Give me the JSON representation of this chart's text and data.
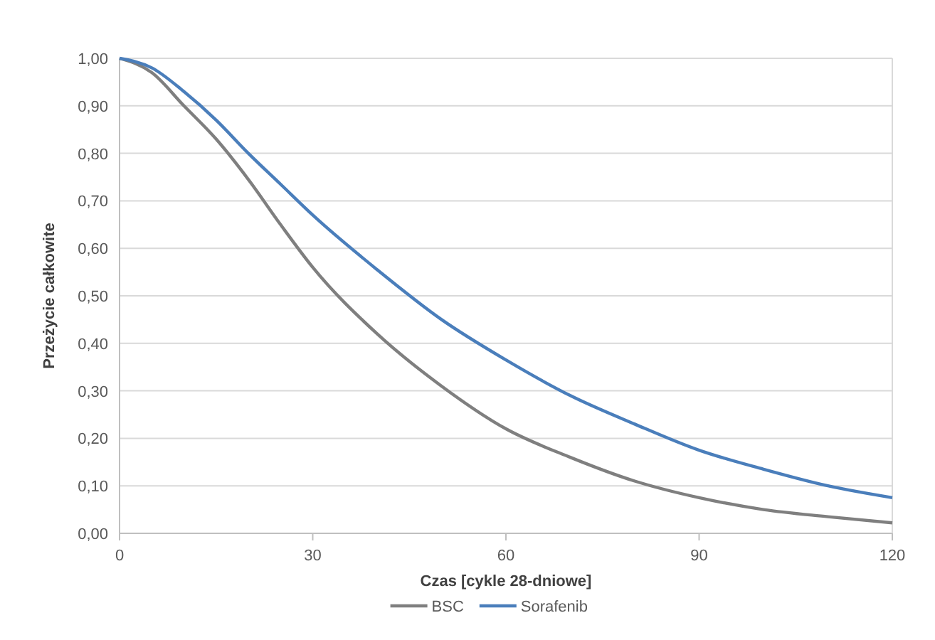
{
  "chart_data": {
    "type": "line",
    "xlabel": "Czas [cykle 28-dniowe]",
    "ylabel": "Przeżycie całkowite",
    "x": [
      0,
      5,
      10,
      15,
      20,
      25,
      30,
      40,
      50,
      60,
      70,
      80,
      90,
      100,
      110,
      120
    ],
    "series": [
      {
        "name": "BSC",
        "color": "#7f7f7f",
        "values": [
          1.0,
          0.97,
          0.9,
          0.83,
          0.745,
          0.65,
          0.56,
          0.42,
          0.31,
          0.22,
          0.16,
          0.11,
          0.075,
          0.05,
          0.035,
          0.022
        ]
      },
      {
        "name": "Sorafenib",
        "color": "#4a7ebb",
        "values": [
          1.0,
          0.98,
          0.93,
          0.87,
          0.8,
          0.735,
          0.67,
          0.555,
          0.45,
          0.365,
          0.29,
          0.23,
          0.175,
          0.135,
          0.1,
          0.075
        ]
      }
    ],
    "xlim": [
      0,
      120
    ],
    "xticks": [
      0,
      30,
      60,
      90,
      120
    ],
    "ylim": [
      0,
      1
    ],
    "yticks": [
      {
        "value": 0,
        "label": "0,00"
      },
      {
        "value": 0.1,
        "label": "0,10"
      },
      {
        "value": 0.2,
        "label": "0,20"
      },
      {
        "value": 0.3,
        "label": "0,30"
      },
      {
        "value": 0.4,
        "label": "0,40"
      },
      {
        "value": 0.5,
        "label": "0,50"
      },
      {
        "value": 0.6,
        "label": "0,60"
      },
      {
        "value": 0.7,
        "label": "0,70"
      },
      {
        "value": 0.8,
        "label": "0,80"
      },
      {
        "value": 0.9,
        "label": "0,90"
      },
      {
        "value": 1,
        "label": "1,00"
      }
    ],
    "grid": "y",
    "legend": "bottom",
    "marker": "none",
    "line_style": "solid"
  }
}
